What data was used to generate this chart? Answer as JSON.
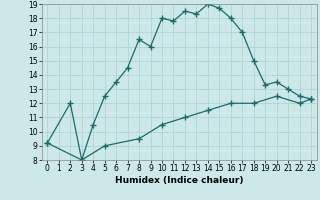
{
  "xlabel": "Humidex (Indice chaleur)",
  "background_color": "#cce8e8",
  "grid_color": "#afd4d4",
  "line_color": "#1a6b6b",
  "xlim": [
    -0.5,
    23.5
  ],
  "ylim": [
    8,
    19
  ],
  "yticks": [
    8,
    9,
    10,
    11,
    12,
    13,
    14,
    15,
    16,
    17,
    18,
    19
  ],
  "xticks": [
    0,
    1,
    2,
    3,
    4,
    5,
    6,
    7,
    8,
    9,
    10,
    11,
    12,
    13,
    14,
    15,
    16,
    17,
    18,
    19,
    20,
    21,
    22,
    23
  ],
  "upper_x": [
    0,
    2,
    3,
    4,
    5,
    6,
    7,
    8,
    9,
    10,
    11,
    12,
    13,
    14,
    15,
    16,
    17,
    18,
    19,
    20,
    21,
    22,
    23
  ],
  "upper_y": [
    9.2,
    12,
    8,
    10.5,
    12.5,
    13.5,
    14.5,
    16.5,
    16,
    18,
    17.8,
    18.5,
    18.3,
    19,
    18.7,
    18,
    17,
    15,
    13.3,
    13.5,
    13,
    12.5,
    12.3
  ],
  "lower_x": [
    0,
    3,
    5,
    8,
    10,
    12,
    14,
    16,
    18,
    20,
    22,
    23
  ],
  "lower_y": [
    9.2,
    8,
    9,
    9.5,
    10.5,
    11,
    11.5,
    12,
    12,
    12.5,
    12,
    12.3
  ]
}
